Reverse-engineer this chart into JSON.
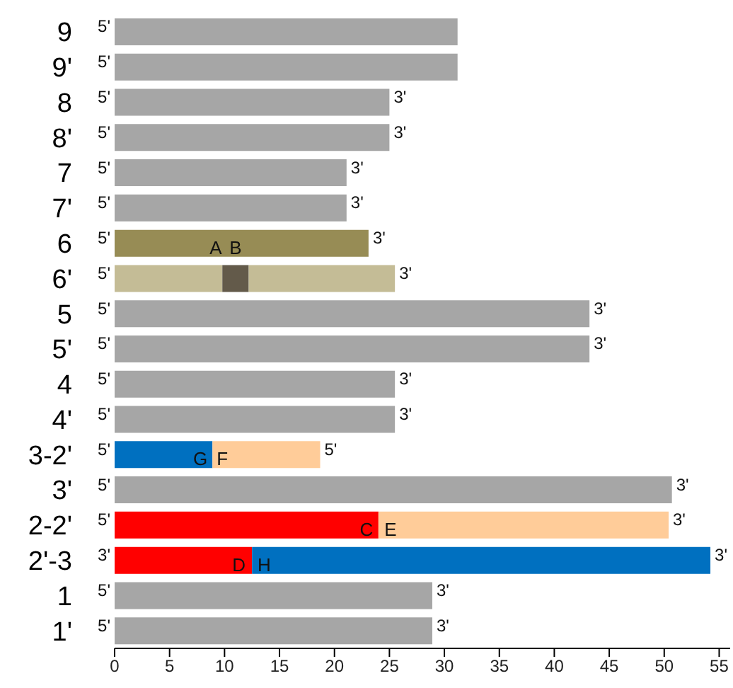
{
  "chart_data": {
    "type": "bar",
    "orientation": "horizontal",
    "stacked": true,
    "categories": [
      "9",
      "9'",
      "8",
      "8'",
      "7",
      "7'",
      "6",
      "6'",
      "5",
      "5'",
      "4",
      "4'",
      "3-2'",
      "3'",
      "2-2'",
      "2'-3",
      "1",
      "1'"
    ],
    "series": [
      {
        "values": [
          31.2,
          31.2,
          25.0,
          25.0,
          21.1,
          21.1,
          23.1,
          9.8,
          43.2,
          43.2,
          25.5,
          25.5,
          8.9,
          50.7,
          24.0,
          12.5,
          28.9,
          28.9
        ],
        "colors": [
          "#a6a6a6",
          "#a6a6a6",
          "#a6a6a6",
          "#a6a6a6",
          "#a6a6a6",
          "#a6a6a6",
          "#978c55",
          "#c4bc96",
          "#a6a6a6",
          "#a6a6a6",
          "#a6a6a6",
          "#a6a6a6",
          "#0070c0",
          "#a6a6a6",
          "#ff0000",
          "#ff0000",
          "#a6a6a6",
          "#a6a6a6"
        ]
      },
      {
        "values": [
          null,
          null,
          null,
          null,
          null,
          null,
          null,
          2.4,
          null,
          null,
          null,
          null,
          9.8,
          null,
          26.4,
          41.7,
          null,
          null
        ],
        "colors": [
          "#a6a6a6",
          "#a6a6a6",
          "#a6a6a6",
          "#a6a6a6",
          "#a6a6a6",
          "#a6a6a6",
          "#a6a6a6",
          "#635a4a",
          "#a6a6a6",
          "#a6a6a6",
          "#a6a6a6",
          "#a6a6a6",
          "#ffcc99",
          "#a6a6a6",
          "#ffcc99",
          "#0070c0",
          "#a6a6a6",
          "#a6a6a6"
        ]
      },
      {
        "values": [
          null,
          null,
          null,
          null,
          null,
          null,
          null,
          13.3,
          null,
          null,
          null,
          null,
          null,
          null,
          null,
          null,
          null,
          null
        ],
        "colors": [
          "#a6a6a6",
          "#a6a6a6",
          "#a6a6a6",
          "#a6a6a6",
          "#a6a6a6",
          "#a6a6a6",
          "#a6a6a6",
          "#c4bc96",
          "#a6a6a6",
          "#a6a6a6",
          "#a6a6a6",
          "#a6a6a6",
          "#a6a6a6",
          "#a6a6a6",
          "#a6a6a6",
          "#a6a6a6",
          "#a6a6a6",
          "#a6a6a6"
        ]
      }
    ],
    "xlim": [
      0,
      56
    ],
    "xticks": [
      0,
      5,
      10,
      15,
      20,
      25,
      30,
      35,
      40,
      45,
      50,
      55
    ],
    "grid": false,
    "legend": false,
    "annotations": [
      {
        "text": "5'",
        "x": 0,
        "y": "9"
      },
      {
        "text": "5'",
        "x": 0,
        "y": "9'"
      },
      {
        "text": "5'",
        "x": 0,
        "y": "8"
      },
      {
        "text": "3'",
        "x": 25.0,
        "y": "8"
      },
      {
        "text": "5'",
        "x": 0,
        "y": "8'"
      },
      {
        "text": "3'",
        "x": 25.0,
        "y": "8'"
      },
      {
        "text": "5'",
        "x": 0,
        "y": "7"
      },
      {
        "text": "3'",
        "x": 21.1,
        "y": "7"
      },
      {
        "text": "5'",
        "x": 0,
        "y": "7'"
      },
      {
        "text": "3'",
        "x": 21.1,
        "y": "7'"
      },
      {
        "text": "5'",
        "x": 0,
        "y": "6"
      },
      {
        "text": "3'",
        "x": 23.1,
        "y": "6"
      },
      {
        "text": "5'",
        "x": 0,
        "y": "6'"
      },
      {
        "text": "3'",
        "x": 25.5,
        "y": "6'"
      },
      {
        "text": "A",
        "x": 9.2,
        "y": "6"
      },
      {
        "text": "B",
        "x": 11.0,
        "y": "6"
      },
      {
        "text": "5'",
        "x": 0,
        "y": "5"
      },
      {
        "text": "3'",
        "x": 43.2,
        "y": "5"
      },
      {
        "text": "5'",
        "x": 0,
        "y": "5'"
      },
      {
        "text": "3'",
        "x": 43.2,
        "y": "5'"
      },
      {
        "text": "5'",
        "x": 0,
        "y": "4"
      },
      {
        "text": "3'",
        "x": 25.5,
        "y": "4"
      },
      {
        "text": "5'",
        "x": 0,
        "y": "4'"
      },
      {
        "text": "3'",
        "x": 25.5,
        "y": "4'"
      },
      {
        "text": "5'",
        "x": 0,
        "y": "3-2'"
      },
      {
        "text": "G",
        "x": 7.8,
        "y": "3-2'"
      },
      {
        "text": "F",
        "x": 9.8,
        "y": "3-2'"
      },
      {
        "text": "5'",
        "x": 18.7,
        "y": "3-2'"
      },
      {
        "text": "5'",
        "x": 0,
        "y": "3'"
      },
      {
        "text": "3'",
        "x": 50.7,
        "y": "3'"
      },
      {
        "text": "5'",
        "x": 0,
        "y": "2-2'"
      },
      {
        "text": "C",
        "x": 22.9,
        "y": "2-2'"
      },
      {
        "text": "E",
        "x": 25.1,
        "y": "2-2'"
      },
      {
        "text": "3'",
        "x": 50.4,
        "y": "2-2'"
      },
      {
        "text": "3'",
        "x": 0,
        "y": "2'-3"
      },
      {
        "text": "D",
        "x": 11.3,
        "y": "2'-3"
      },
      {
        "text": "H",
        "x": 13.6,
        "y": "2'-3"
      },
      {
        "text": "3'",
        "x": 54.2,
        "y": "2'-3"
      },
      {
        "text": "5'",
        "x": 0,
        "y": "1"
      },
      {
        "text": "3'",
        "x": 28.9,
        "y": "1"
      },
      {
        "text": "5'",
        "x": 0,
        "y": "1'"
      },
      {
        "text": "3'",
        "x": 28.9,
        "y": "1'"
      }
    ]
  }
}
